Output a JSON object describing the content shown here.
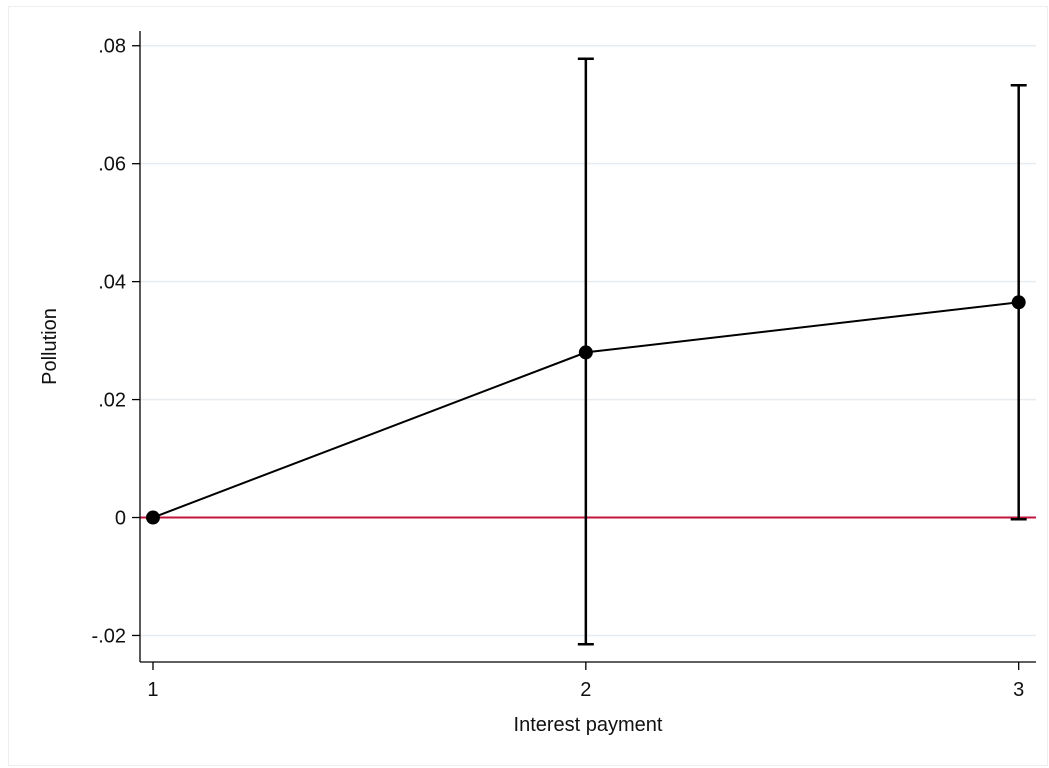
{
  "chart_data": {
    "type": "line",
    "title": "",
    "xlabel": "Interest payment",
    "ylabel": "Pollution",
    "x": [
      1,
      2,
      3
    ],
    "xticks": [
      1,
      2,
      3
    ],
    "xtick_labels": [
      "1",
      "2",
      "3"
    ],
    "xlim": [
      0.97,
      3.04
    ],
    "yticks": [
      -0.02,
      0,
      0.02,
      0.04,
      0.06,
      0.08
    ],
    "ytick_labels": [
      "-.02",
      "0",
      ".02",
      ".04",
      ".06",
      ".08"
    ],
    "ylim": [
      -0.0245,
      0.0825
    ],
    "grid": "horizontal",
    "legend": "none",
    "series": [
      {
        "values": [
          0,
          0.028,
          0.0365
        ],
        "ci_lower": [
          null,
          -0.0215,
          -0.0003
        ],
        "ci_upper": [
          null,
          0.0778,
          0.0733
        ],
        "color": "#000000",
        "marker": "circle"
      }
    ],
    "reference_lines": [
      {
        "axis": "y",
        "value": 0,
        "color": "#c2143c"
      }
    ]
  },
  "colors": {
    "grid": "#e6ecf0",
    "axis": "#000000",
    "series": "#000000",
    "reference": "#c2143c"
  }
}
